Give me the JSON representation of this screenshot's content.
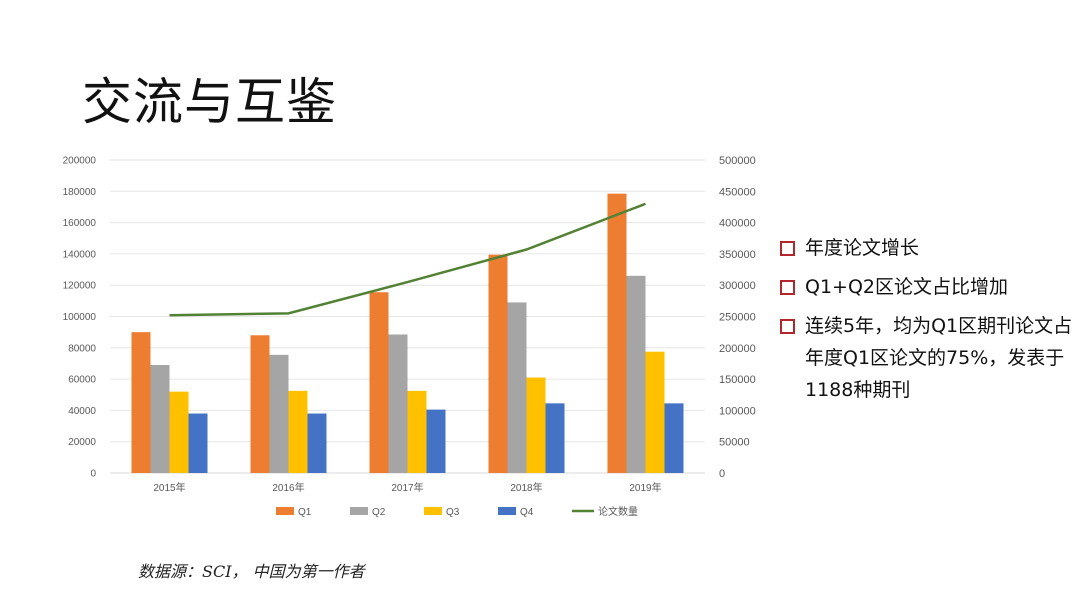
{
  "page": {
    "title": "交流与互鉴",
    "source": "数据源：SCI， 中国为第一作者"
  },
  "bullets": [
    {
      "text": "年度论文增长"
    },
    {
      "text": "Q1+Q2区论文占比增加"
    },
    {
      "text": "连续5年，均为Q1区期刊论文占年度Q1区论文的75%，发表于1188种期刊"
    }
  ],
  "colors": {
    "Q1": "#ED7D31",
    "Q2": "#A5A5A5",
    "Q3": "#FFC000",
    "Q4": "#4472C4",
    "line": "#548235",
    "bullet": "#b3262c"
  },
  "chart_data": {
    "type": "bar",
    "categories": [
      "2015年",
      "2016年",
      "2017年",
      "2018年",
      "2019年"
    ],
    "series": [
      {
        "name": "Q1",
        "type": "bar",
        "axis": "left",
        "values": [
          90000,
          88000,
          115500,
          139500,
          178500
        ]
      },
      {
        "name": "Q2",
        "type": "bar",
        "axis": "left",
        "values": [
          69000,
          75500,
          88500,
          109000,
          126000
        ]
      },
      {
        "name": "Q3",
        "type": "bar",
        "axis": "left",
        "values": [
          52000,
          52500,
          52500,
          61000,
          77500
        ]
      },
      {
        "name": "Q4",
        "type": "bar",
        "axis": "left",
        "values": [
          38000,
          38000,
          40500,
          44500,
          44500
        ]
      },
      {
        "name": "论文数量",
        "type": "line",
        "axis": "right",
        "values": [
          252000,
          255000,
          305000,
          357000,
          430000
        ]
      }
    ],
    "ylim_left": [
      0,
      200000
    ],
    "ylim_right": [
      0,
      500000
    ],
    "yticks_left": [
      "0",
      "20000",
      "40000",
      "60000",
      "80000",
      "100000",
      "120000",
      "140000",
      "160000",
      "180000",
      "200000"
    ],
    "yticks_right": [
      "0",
      "50000",
      "100000",
      "150000",
      "200000",
      "250000",
      "300000",
      "350000",
      "400000",
      "450000",
      "500000"
    ],
    "grid": true,
    "legend_position": "bottom"
  }
}
